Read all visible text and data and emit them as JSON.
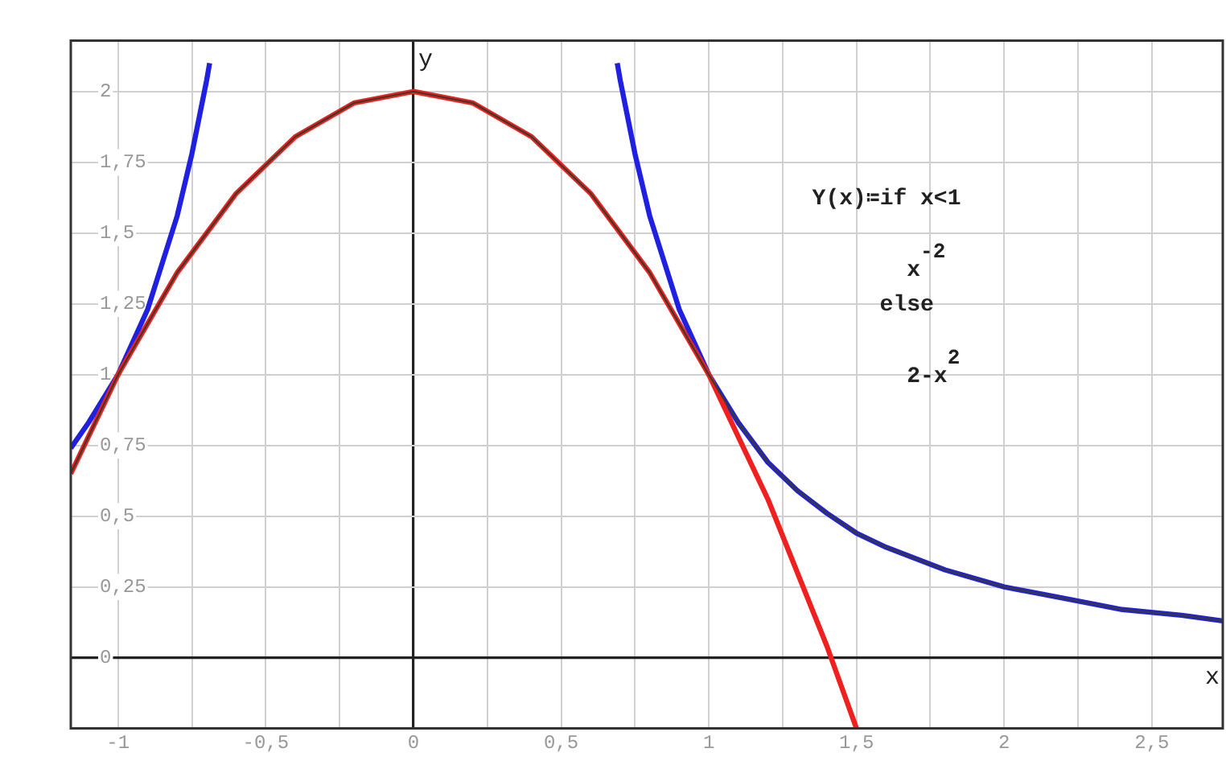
{
  "chart_data": {
    "type": "line",
    "xlabel": "x",
    "ylabel": "y",
    "annotations": [
      "Y(x)≔if x<1",
      "x$^{-2}$",
      "else",
      "2-x$^{2}$"
    ],
    "xlim": [
      -1.16,
      2.74
    ],
    "ylim": [
      -0.25,
      2.18
    ],
    "xticks": [
      -1,
      {
        "value": -0.75,
        "label": null
      },
      {
        "value": -0.5,
        "label": "-0,5"
      },
      {
        "value": -0.25,
        "label": null
      },
      0,
      {
        "value": 0.25,
        "label": null
      },
      {
        "value": 0.5,
        "label": "0,5"
      },
      {
        "value": 0.75,
        "label": null
      },
      1,
      {
        "value": 1.25,
        "label": null
      },
      {
        "value": 1.5,
        "label": "1,5"
      },
      {
        "value": 1.75,
        "label": null
      },
      2,
      {
        "value": 2.25,
        "label": null
      },
      {
        "value": 2.5,
        "label": "2,5"
      }
    ],
    "yticks": [
      0,
      {
        "value": 0.25,
        "label": "0,25"
      },
      {
        "value": 0.5,
        "label": "0,5"
      },
      {
        "value": 0.75,
        "label": "0,75"
      },
      1,
      {
        "value": 1.25,
        "label": "1,25"
      },
      {
        "value": 1.5,
        "label": "1,5"
      },
      {
        "value": 1.75,
        "label": "1,75"
      },
      2
    ],
    "grid": true,
    "legend": false,
    "marker": "none",
    "line_style": "solid",
    "series": [
      {
        "color": "#2020e0",
        "x": [
          -1.16,
          -1.1,
          -1.0,
          -0.9,
          -0.8,
          -0.75,
          -0.7,
          -0.69,
          0,
          0.69,
          0.7,
          0.75,
          0.8,
          0.9,
          1.0,
          1.1,
          1.2,
          1.3,
          1.4,
          1.5,
          1.6,
          1.8,
          2.0,
          2.2,
          2.4,
          2.6,
          2.74
        ],
        "values": [
          0.74,
          0.83,
          1.0,
          1.23,
          1.56,
          1.78,
          2.04,
          2.1,
          null,
          2.1,
          2.04,
          1.78,
          1.56,
          1.23,
          1.0,
          0.83,
          0.69,
          0.59,
          0.51,
          0.44,
          0.39,
          0.31,
          0.25,
          0.21,
          0.17,
          0.15,
          0.13
        ]
      },
      {
        "color": "#ee2020",
        "x": [
          -1.16,
          -1.0,
          -0.8,
          -0.6,
          -0.4,
          -0.2,
          0,
          0.2,
          0.4,
          0.6,
          0.8,
          1.0,
          1.2,
          1.4,
          1.5
        ],
        "values": [
          0.65,
          1.0,
          1.36,
          1.64,
          1.84,
          1.96,
          2.0,
          1.96,
          1.84,
          1.64,
          1.36,
          1.0,
          0.56,
          0.04,
          -0.25
        ]
      },
      {
        "color": "#3a3a2a",
        "x": [
          -1.16,
          -1.0,
          -0.8,
          -0.6,
          -0.4,
          -0.2,
          0,
          0.2,
          0.4,
          0.6,
          0.8,
          1.0,
          1.1,
          1.2,
          1.3,
          1.4,
          1.5,
          1.6,
          1.8,
          2.0,
          2.2,
          2.4,
          2.6,
          2.74
        ],
        "values": [
          0.65,
          1.0,
          1.36,
          1.64,
          1.84,
          1.96,
          2.0,
          1.96,
          1.84,
          1.64,
          1.36,
          1.0,
          0.83,
          0.69,
          0.59,
          0.51,
          0.44,
          0.39,
          0.31,
          0.25,
          0.21,
          0.17,
          0.15,
          0.13
        ]
      }
    ]
  }
}
